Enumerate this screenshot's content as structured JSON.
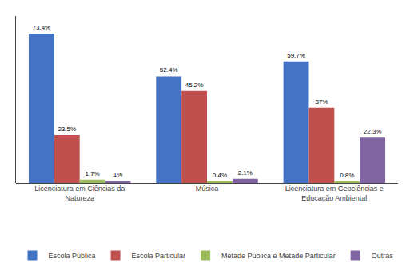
{
  "chart_data": {
    "type": "bar",
    "categories": [
      "Licenciatura em Ciências da\nNatureza",
      "Música",
      "Licenciatura em Geociências e\nEducação Ambiental"
    ],
    "series": [
      {
        "name": "Escola Pública",
        "color": "#4472C4",
        "values": [
          73.4,
          52.4,
          59.7
        ],
        "value_labels": [
          "73.4%",
          "52.4%",
          "59.7%"
        ]
      },
      {
        "name": "Escola Particular",
        "color": "#C0504D",
        "values": [
          23.5,
          45.2,
          37.0
        ],
        "value_labels": [
          "23.5%",
          "45.2%",
          "37%"
        ]
      },
      {
        "name": "Metade Pública e Metade Particular",
        "color": "#9BBB59",
        "values": [
          1.7,
          0.4,
          0.8
        ],
        "value_labels": [
          "1.7%",
          "0.4%",
          "0.8%"
        ]
      },
      {
        "name": "Outras",
        "color": "#8064A2",
        "values": [
          1.0,
          2.1,
          22.3
        ],
        "value_labels": [
          "1%",
          "2.1%",
          "22.3%"
        ]
      }
    ],
    "ylim": [
      0,
      82
    ],
    "grid": false,
    "legend": "bottom",
    "data_labels": true,
    "tick_labels": "x"
  }
}
